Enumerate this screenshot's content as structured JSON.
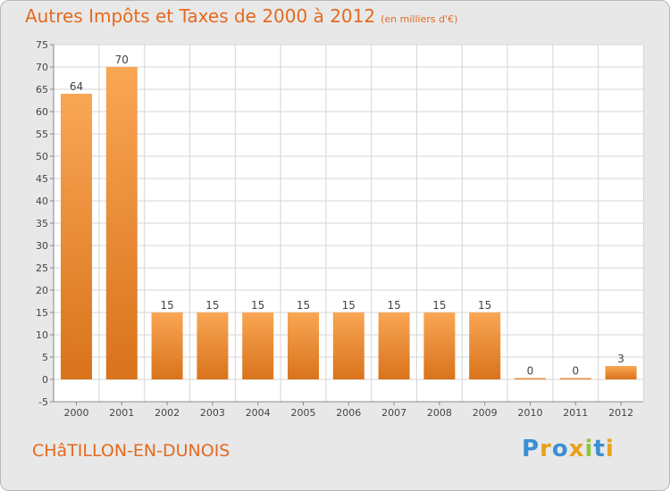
{
  "header": {
    "title": "Autres Impôts et Taxes de 2000 à 2012",
    "unit": "(en milliers d'€)"
  },
  "footer": {
    "town": "CHâTILLON-EN-DUNOIS",
    "brand": "Proxiti",
    "brand_letters": [
      {
        "char": "P",
        "color": "#3b8fd6"
      },
      {
        "char": "r",
        "color": "#e8a11c"
      },
      {
        "char": "o",
        "color": "#3b8fd6"
      },
      {
        "char": "x",
        "color": "#e8a11c"
      },
      {
        "char": "i",
        "color": "#8cc63f"
      },
      {
        "char": "t",
        "color": "#3b8fd6"
      },
      {
        "char": "i",
        "color": "#e8a11c"
      }
    ]
  },
  "colors": {
    "accent": "#e46a1e",
    "bar_light": "#f7a453",
    "bar_dark": "#e07e22",
    "plot_background": "#ffffff",
    "grid": "#d6d6d6"
  },
  "chart_data": {
    "type": "bar",
    "title": "Autres Impôts et Taxes de 2000 à 2012",
    "subtitle": "(en milliers d'€)",
    "categories": [
      "2000",
      "2001",
      "2002",
      "2003",
      "2004",
      "2005",
      "2006",
      "2007",
      "2008",
      "2009",
      "2010",
      "2011",
      "2012"
    ],
    "values": [
      64,
      70,
      15,
      15,
      15,
      15,
      15,
      15,
      15,
      15,
      0,
      0,
      3
    ],
    "data_labels": [
      "64",
      "70",
      "15",
      "15",
      "15",
      "15",
      "15",
      "15",
      "15",
      "15",
      "0",
      "0",
      "3"
    ],
    "xlabel": "",
    "ylabel": "",
    "ylim": [
      -5,
      75
    ],
    "yticks": [
      -5,
      0,
      5,
      10,
      15,
      20,
      25,
      30,
      35,
      40,
      45,
      50,
      55,
      60,
      65,
      70,
      75
    ],
    "grid": true
  }
}
